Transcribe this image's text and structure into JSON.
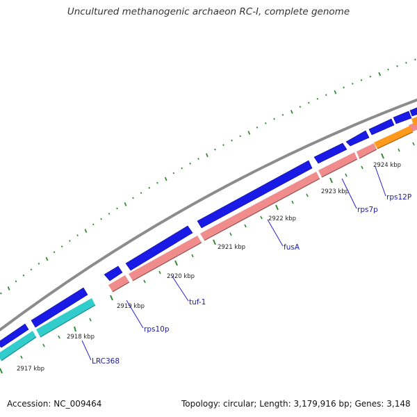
{
  "title": "Uncultured methanogenic archaeon RC-I, complete genome",
  "footer": {
    "accession": "Accession: NC_009464",
    "topology": "Topology: circular; Length: 3,179,916 bp; Genes: 3,148"
  },
  "colors": {
    "backbone": "#8c8c8c",
    "forward_gene": "#1a1ae6",
    "reverse_cds": "#f08c8c",
    "cyan_gene": "#33cccc",
    "orange_gene": "#ff9a1a",
    "ticks": "#2e8b2e",
    "label_line": "#2222cc"
  },
  "ticks": [
    {
      "label": "2917 kbp"
    },
    {
      "label": "2918 kbp"
    },
    {
      "label": "2919 kbp"
    },
    {
      "label": "2920 kbp"
    },
    {
      "label": "2921 kbp"
    },
    {
      "label": "2922 kbp"
    },
    {
      "label": "2923 kbp"
    },
    {
      "label": "2924 kbp"
    }
  ],
  "genes": [
    {
      "label": "LRC368"
    },
    {
      "label": "rps10p"
    },
    {
      "label": "tuf-1"
    },
    {
      "label": "fusA"
    },
    {
      "label": "rps7p"
    },
    {
      "label": "rps12P"
    }
  ]
}
